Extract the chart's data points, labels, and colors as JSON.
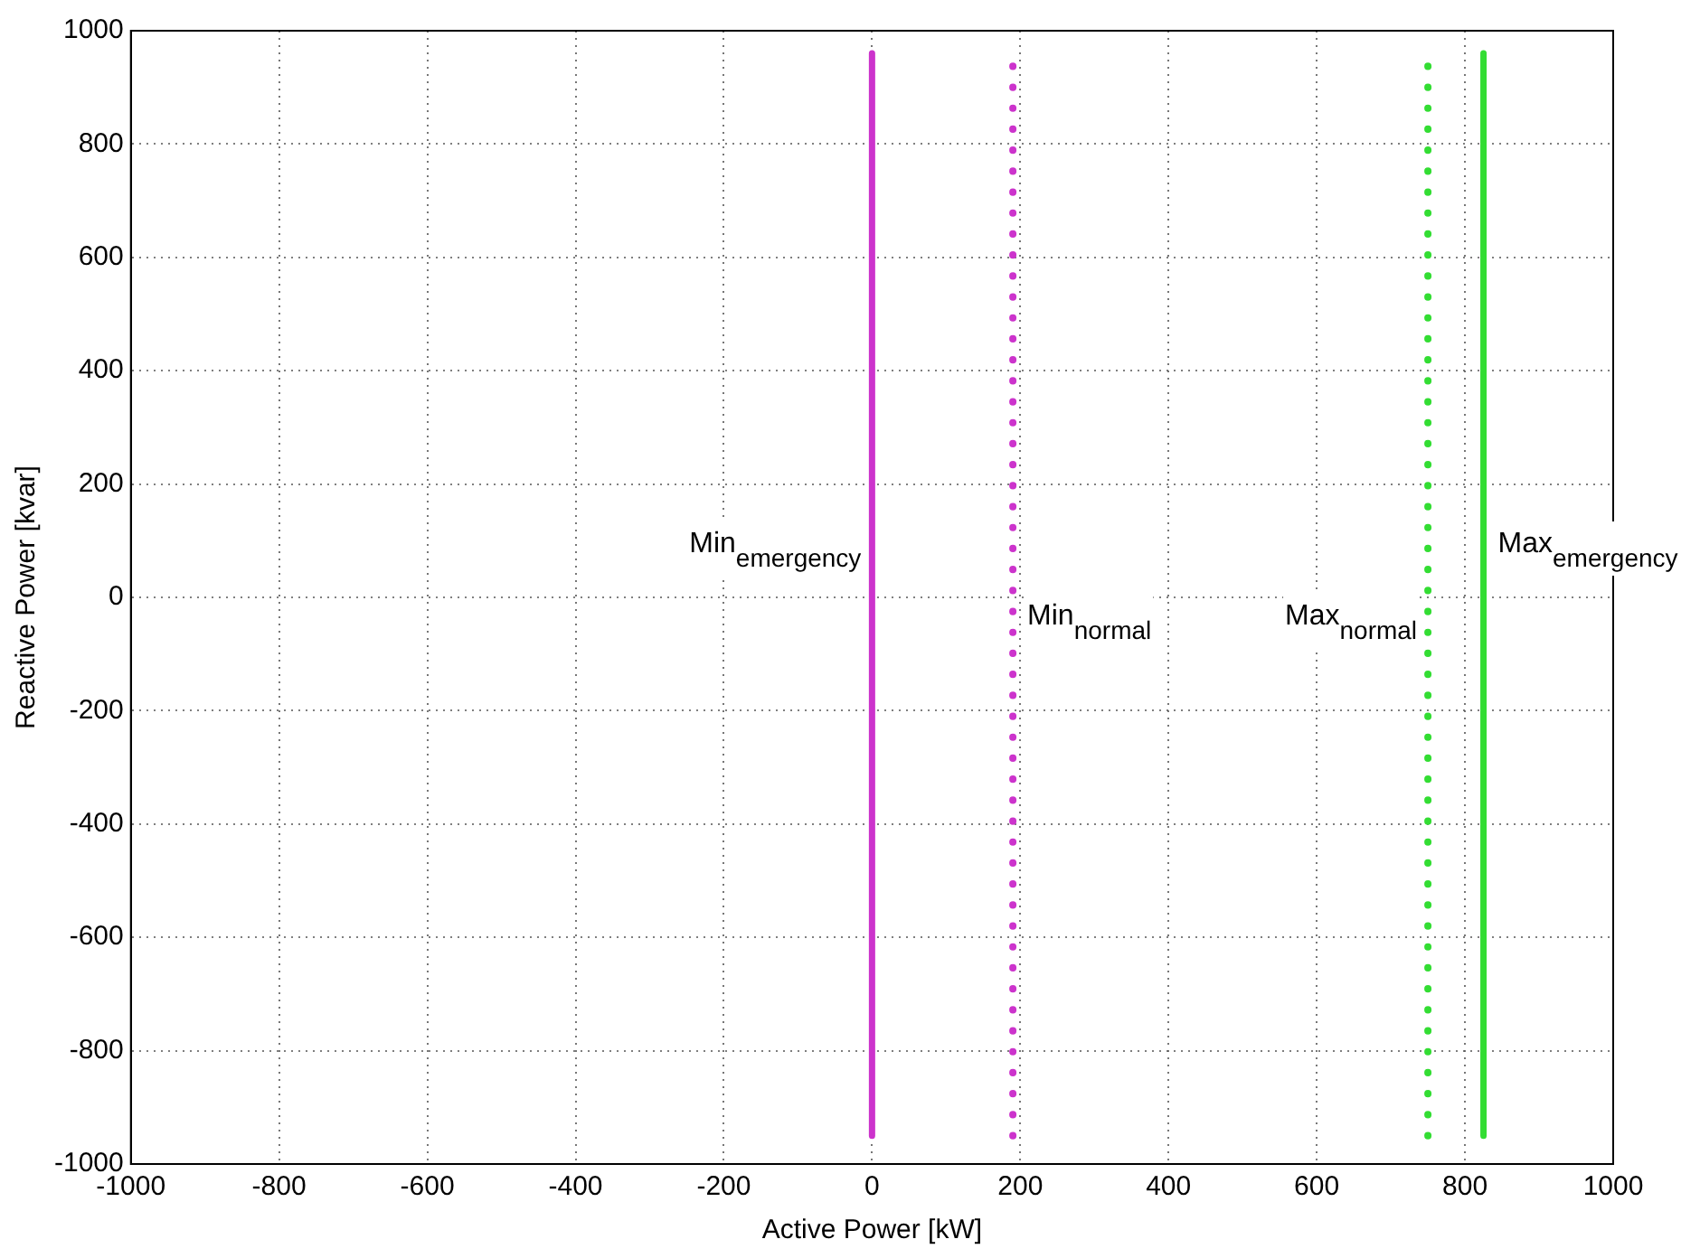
{
  "chart_data": {
    "type": "line",
    "xlabel": "Active Power [kW]",
    "ylabel": "Reactive Power [kvar]",
    "xlim": [
      -1000,
      1000
    ],
    "xticks": [
      -1000,
      -800,
      -600,
      -400,
      -200,
      0,
      200,
      400,
      600,
      800,
      1000
    ],
    "ylim": [
      -1000,
      1000
    ],
    "yticks": [
      -1000,
      -800,
      -600,
      -400,
      -200,
      0,
      200,
      400,
      600,
      800,
      1000
    ],
    "grid": true,
    "series": [
      {
        "name": "Min$_{emergency}$",
        "color": "#cc33cc",
        "x": [
          0,
          0
        ],
        "values": [
          -950,
          960
        ],
        "line_style": "solid"
      },
      {
        "name": "Min$_{normal}$",
        "color": "#cc33cc",
        "x": [
          190,
          190
        ],
        "values": [
          -950,
          960
        ],
        "line_style": "dotted"
      },
      {
        "name": "Max$_{normal}$",
        "color": "#33dd33",
        "x": [
          750,
          750
        ],
        "values": [
          -950,
          960
        ],
        "line_style": "dotted"
      },
      {
        "name": "Max$_{emergency}$",
        "color": "#33dd33",
        "x": [
          825,
          825
        ],
        "values": [
          -950,
          960
        ],
        "line_style": "solid"
      }
    ]
  }
}
